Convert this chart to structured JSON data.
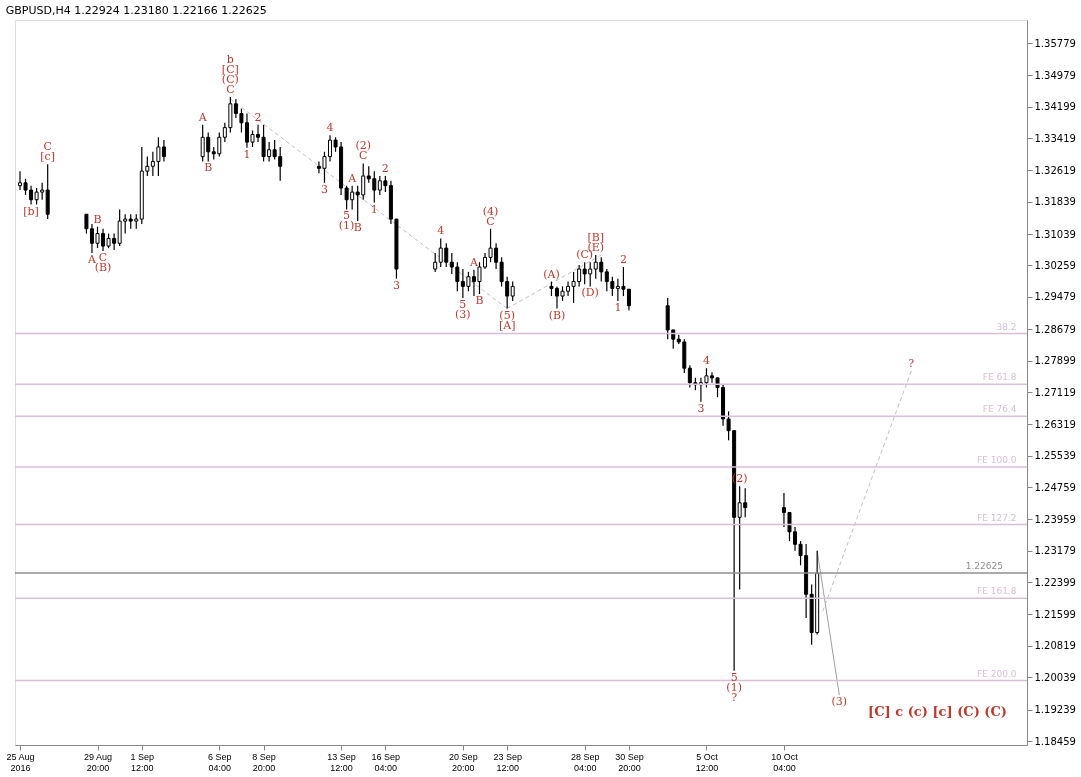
{
  "chart_data": {
    "type": "candlestick",
    "title": "GBPUSD,H4 1.22924 1.23180 1.22166 1.22625",
    "xlim": [
      "2016-08-25T04:00",
      "2016-10-24T12:00"
    ],
    "xticks": [
      {
        "value": "2016-08-25T04:00",
        "label": "25 Aug 2016"
      },
      {
        "value": "2016-08-29T20:00",
        "label": "29 Aug 20:00"
      },
      {
        "value": "2016-09-01T12:00",
        "label": "1 Sep 12:00"
      },
      {
        "value": "2016-09-06T04:00",
        "label": "6 Sep 04:00"
      },
      {
        "value": "2016-09-08T20:00",
        "label": "8 Sep 20:00"
      },
      {
        "value": "2016-09-13T12:00",
        "label": "13 Sep 12:00"
      },
      {
        "value": "2016-09-16T04:00",
        "label": "16 Sep 04:00"
      },
      {
        "value": "2016-09-20T20:00",
        "label": "20 Sep 20:00"
      },
      {
        "value": "2016-09-23T12:00",
        "label": "23 Sep 12:00"
      },
      {
        "value": "2016-09-28T04:00",
        "label": "28 Sep 04:00"
      },
      {
        "value": "2016-09-30T20:00",
        "label": "30 Sep 20:00"
      },
      {
        "value": "2016-10-05T12:00",
        "label": "5 Oct 12:00"
      },
      {
        "value": "2016-10-10T04:00",
        "label": "10 Oct 04:00"
      }
    ],
    "ylim": [
      1.1836,
      1.3635
    ],
    "yticks": [
      1.35779,
      1.34979,
      1.34199,
      1.33419,
      1.32619,
      1.31839,
      1.31039,
      1.30259,
      1.29479,
      1.28679,
      1.27899,
      1.27119,
      1.26319,
      1.25539,
      1.24759,
      1.23959,
      1.23179,
      1.22399,
      1.21599,
      1.20819,
      1.20039,
      1.19239,
      1.18459
    ],
    "grid": false,
    "series": [
      {
        "color": "#000000",
        "x": [
          "2016-08-25T04:00",
          "2016-08-25T12:00",
          "2016-08-25T20:00",
          "2016-08-26T04:00",
          "2016-08-26T12:00",
          "2016-08-26T20:00",
          "2016-08-29T04:00",
          "2016-08-29T12:00",
          "2016-08-29T20:00",
          "2016-08-30T04:00",
          "2016-08-30T12:00",
          "2016-08-30T20:00",
          "2016-08-31T04:00",
          "2016-08-31T12:00",
          "2016-08-31T20:00",
          "2016-09-01T04:00",
          "2016-09-01T12:00",
          "2016-09-01T20:00",
          "2016-09-02T04:00",
          "2016-09-02T12:00",
          "2016-09-02T20:00",
          "2016-09-05T04:00",
          "2016-09-05T12:00",
          "2016-09-05T20:00",
          "2016-09-06T04:00",
          "2016-09-06T12:00",
          "2016-09-06T20:00",
          "2016-09-07T04:00",
          "2016-09-07T12:00",
          "2016-09-07T20:00",
          "2016-09-08T04:00",
          "2016-09-08T12:00",
          "2016-09-08T20:00",
          "2016-09-09T04:00",
          "2016-09-09T12:00",
          "2016-09-09T20:00",
          "2016-09-12T04:00",
          "2016-09-12T12:00",
          "2016-09-12T20:00",
          "2016-09-13T04:00",
          "2016-09-13T12:00",
          "2016-09-13T20:00",
          "2016-09-14T04:00",
          "2016-09-14T12:00",
          "2016-09-14T20:00",
          "2016-09-15T04:00",
          "2016-09-15T12:00",
          "2016-09-15T20:00",
          "2016-09-16T04:00",
          "2016-09-16T12:00",
          "2016-09-16T20:00",
          "2016-09-19T04:00",
          "2016-09-19T12:00",
          "2016-09-19T20:00",
          "2016-09-20T04:00",
          "2016-09-20T12:00",
          "2016-09-20T20:00",
          "2016-09-21T04:00",
          "2016-09-21T12:00",
          "2016-09-21T20:00",
          "2016-09-22T04:00",
          "2016-09-22T12:00",
          "2016-09-22T20:00",
          "2016-09-23T04:00",
          "2016-09-23T12:00",
          "2016-09-23T20:00",
          "2016-09-26T04:00",
          "2016-09-26T12:00",
          "2016-09-26T20:00",
          "2016-09-27T04:00",
          "2016-09-27T12:00",
          "2016-09-27T20:00",
          "2016-09-28T04:00",
          "2016-09-28T12:00",
          "2016-09-28T20:00",
          "2016-09-29T04:00",
          "2016-09-29T12:00",
          "2016-09-29T20:00",
          "2016-09-30T04:00",
          "2016-09-30T12:00",
          "2016-09-30T20:00",
          "2016-10-03T04:00",
          "2016-10-03T12:00",
          "2016-10-03T20:00",
          "2016-10-04T04:00",
          "2016-10-04T12:00",
          "2016-10-04T20:00",
          "2016-10-05T04:00",
          "2016-10-05T12:00",
          "2016-10-05T20:00",
          "2016-10-06T04:00",
          "2016-10-06T12:00",
          "2016-10-06T20:00",
          "2016-10-07T04:00",
          "2016-10-07T12:00",
          "2016-10-07T20:00",
          "2016-10-10T04:00",
          "2016-10-10T12:00",
          "2016-10-10T20:00",
          "2016-10-11T04:00",
          "2016-10-11T12:00",
          "2016-10-11T20:00",
          "2016-10-12T04:00"
        ],
        "ohlc": [
          [
            1.3224,
            1.326,
            1.3213,
            1.3231
          ],
          [
            1.3231,
            1.3241,
            1.3201,
            1.3213
          ],
          [
            1.3213,
            1.3224,
            1.3177,
            1.3189
          ],
          [
            1.3189,
            1.3218,
            1.3177,
            1.3208
          ],
          [
            1.3208,
            1.3231,
            1.3189,
            1.3213
          ],
          [
            1.3213,
            1.3277,
            1.3141,
            1.3153
          ],
          [
            1.3153,
            1.3153,
            1.3105,
            1.3117
          ],
          [
            1.3117,
            1.3129,
            1.3057,
            1.3081
          ],
          [
            1.3081,
            1.3122,
            1.3069,
            1.3105
          ],
          [
            1.3105,
            1.3117,
            1.3062,
            1.3074
          ],
          [
            1.3074,
            1.3105,
            1.3069,
            1.3093
          ],
          [
            1.3093,
            1.3105,
            1.3064,
            1.3081
          ],
          [
            1.3081,
            1.3165,
            1.3074,
            1.3136
          ],
          [
            1.3136,
            1.3153,
            1.3105,
            1.3141
          ],
          [
            1.3141,
            1.3153,
            1.3117,
            1.3136
          ],
          [
            1.3136,
            1.3153,
            1.3117,
            1.3141
          ],
          [
            1.3141,
            1.332,
            1.3129,
            1.326
          ],
          [
            1.326,
            1.3296,
            1.3248,
            1.3272
          ],
          [
            1.3272,
            1.3308,
            1.3248,
            1.3284
          ],
          [
            1.3284,
            1.3344,
            1.3248,
            1.332
          ],
          [
            1.332,
            1.3337,
            1.3284,
            1.3296
          ],
          [
            1.3296,
            1.3375,
            1.3284,
            1.3344
          ],
          [
            1.3344,
            1.3356,
            1.3284,
            1.3308
          ],
          [
            1.3308,
            1.332,
            1.3289,
            1.3303
          ],
          [
            1.3303,
            1.3356,
            1.3296,
            1.3344
          ],
          [
            1.3344,
            1.338,
            1.3332,
            1.3368
          ],
          [
            1.3368,
            1.3444,
            1.3356,
            1.3427
          ],
          [
            1.3427,
            1.3439,
            1.3392,
            1.3403
          ],
          [
            1.3403,
            1.3415,
            1.3356,
            1.338
          ],
          [
            1.338,
            1.3403,
            1.3318,
            1.3332
          ],
          [
            1.3332,
            1.3361,
            1.332,
            1.3351
          ],
          [
            1.3351,
            1.3375,
            1.3332,
            1.3344
          ],
          [
            1.3344,
            1.3375,
            1.3284,
            1.3296
          ],
          [
            1.3296,
            1.3332,
            1.3284,
            1.3313
          ],
          [
            1.3313,
            1.3337,
            1.3289,
            1.3296
          ],
          [
            1.3296,
            1.332,
            1.3236,
            1.3272
          ],
          [
            1.3272,
            1.3284,
            1.3255,
            1.3267
          ],
          [
            1.3267,
            1.3308,
            1.3231,
            1.3296
          ],
          [
            1.3296,
            1.3349,
            1.3284,
            1.3337
          ],
          [
            1.3337,
            1.3344,
            1.3308,
            1.332
          ],
          [
            1.332,
            1.3332,
            1.3201,
            1.3218
          ],
          [
            1.3218,
            1.3224,
            1.3165,
            1.3189
          ],
          [
            1.3189,
            1.3224,
            1.3165,
            1.3208
          ],
          [
            1.3208,
            1.3224,
            1.3136,
            1.3201
          ],
          [
            1.3201,
            1.3279,
            1.3189,
            1.3248
          ],
          [
            1.3248,
            1.3272,
            1.3231,
            1.3241
          ],
          [
            1.3241,
            1.326,
            1.3182,
            1.3213
          ],
          [
            1.3213,
            1.3248,
            1.3201,
            1.3236
          ],
          [
            1.3236,
            1.3248,
            1.3208,
            1.3224
          ],
          [
            1.3224,
            1.3236,
            1.3129,
            1.3141
          ],
          [
            1.3141,
            1.3141,
            1.2993,
            1.3017
          ],
          [
            1.3017,
            1.3057,
            1.301,
            1.3034
          ],
          [
            1.3034,
            1.3093,
            1.3022,
            1.3069
          ],
          [
            1.3069,
            1.3081,
            1.3022,
            1.3034
          ],
          [
            1.3034,
            1.3057,
            1.3005,
            1.3022
          ],
          [
            1.3022,
            1.3034,
            1.2962,
            1.2986
          ],
          [
            1.2986,
            1.3017,
            1.2945,
            1.2974
          ],
          [
            1.2974,
            1.301,
            1.2962,
            1.2998
          ],
          [
            1.2998,
            1.3015,
            1.295,
            1.2986
          ],
          [
            1.2986,
            1.3034,
            1.2955,
            1.3022
          ],
          [
            1.3022,
            1.3057,
            1.3017,
            1.3046
          ],
          [
            1.3046,
            1.3117,
            1.3034,
            1.3069
          ],
          [
            1.3069,
            1.3081,
            1.3017,
            1.3034
          ],
          [
            1.3034,
            1.3046,
            1.2974,
            1.2986
          ],
          [
            1.2986,
            1.2998,
            1.2919,
            1.295
          ],
          [
            1.295,
            1.2986,
            1.2938,
            1.2974
          ],
          [
            1.2974,
            1.2986,
            1.295,
            1.2969
          ],
          [
            1.2969,
            1.2974,
            1.2919,
            1.295
          ],
          [
            1.295,
            1.2974,
            1.2938,
            1.2962
          ],
          [
            1.2962,
            1.2986,
            1.295,
            1.2974
          ],
          [
            1.2974,
            1.301,
            1.2933,
            1.2986
          ],
          [
            1.2986,
            1.3027,
            1.2974,
            1.3017
          ],
          [
            1.3017,
            1.3034,
            1.2979,
            1.3005
          ],
          [
            1.3005,
            1.3034,
            1.2974,
            1.3017
          ],
          [
            1.3017,
            1.3052,
            1.2993,
            1.3034
          ],
          [
            1.3034,
            1.3046,
            1.2986,
            1.301
          ],
          [
            1.301,
            1.3017,
            1.2962,
            1.2986
          ],
          [
            1.2986,
            1.2998,
            1.295,
            1.2969
          ],
          [
            1.2969,
            1.2993,
            1.2938,
            1.2974
          ],
          [
            1.2974,
            1.3022,
            1.295,
            1.2967
          ],
          [
            1.2967,
            1.2967,
            1.2914,
            1.2926
          ],
          [
            1.2926,
            1.2945,
            1.2843,
            1.2866
          ],
          [
            1.2866,
            1.2866,
            1.2819,
            1.2843
          ],
          [
            1.2843,
            1.2854,
            1.2831,
            1.2836
          ],
          [
            1.2836,
            1.2843,
            1.2759,
            1.2771
          ],
          [
            1.2771,
            1.2778,
            1.2723,
            1.2735
          ],
          [
            1.2735,
            1.2747,
            1.2716,
            1.273
          ],
          [
            1.273,
            1.2747,
            1.2688,
            1.2735
          ],
          [
            1.2735,
            1.2771,
            1.2723,
            1.2752
          ],
          [
            1.2752,
            1.2761,
            1.2735,
            1.2747
          ],
          [
            1.2747,
            1.2747,
            1.2699,
            1.2723
          ],
          [
            1.2723,
            1.273,
            1.2628,
            1.2645
          ],
          [
            1.2645,
            1.2664,
            1.2592,
            1.2616
          ],
          [
            1.2616,
            1.2616,
            1.202,
            1.2401
          ],
          [
            1.2401,
            1.2478,
            1.2222,
            1.2437
          ],
          [
            1.2437,
            1.2473,
            1.2401,
            1.2425
          ],
          [
            1.2425,
            1.2461,
            1.2377,
            1.2413
          ],
          [
            1.2413,
            1.2413,
            1.2342,
            1.2365
          ],
          [
            1.2365,
            1.2377,
            1.2318,
            1.2334
          ],
          [
            1.2334,
            1.2342,
            1.2282,
            1.2306
          ],
          [
            1.2306,
            1.2335,
            1.2151,
            1.221
          ],
          [
            1.221,
            1.2234,
            1.2085,
            1.2115
          ],
          [
            1.2115,
            1.2318,
            1.211,
            1.22625
          ]
        ]
      },
      {
        "type": "line",
        "color": "#c0c0c0",
        "line_style": "dashed",
        "x": [
          "2016-09-06T20:00",
          "2016-09-23T12:00"
        ],
        "values": [
          1.3439,
          1.2919
        ]
      },
      {
        "type": "line",
        "color": "#c0c0c0",
        "line_style": "dashed",
        "x": [
          "2016-09-23T12:00",
          "2016-09-29T04:00"
        ],
        "values": [
          1.2919,
          1.3052
        ]
      },
      {
        "type": "line",
        "color": "#a0a0a0",
        "line_style": "solid",
        "x": [
          "2016-10-12T04:00",
          "2016-10-13T12:00"
        ],
        "values": [
          1.2318,
          1.196
        ]
      },
      {
        "type": "line",
        "color": "#c0c0c0",
        "line_style": "dashed",
        "x": [
          "2016-10-12T12:00",
          "2016-10-17T20:00"
        ],
        "values": [
          1.2168,
          1.2764
        ]
      }
    ],
    "ref_lines": [
      {
        "axis": "y",
        "value": 1.2857,
        "color": "#d8bfd8"
      },
      {
        "axis": "y",
        "value": 1.2731,
        "color": "#d8bfd8"
      },
      {
        "axis": "y",
        "value": 1.2652,
        "color": "#d8bfd8"
      },
      {
        "axis": "y",
        "value": 1.2526,
        "color": "#d8bfd8"
      },
      {
        "axis": "y",
        "value": 1.2383,
        "color": "#d8bfd8"
      },
      {
        "axis": "y",
        "value": 1.22,
        "color": "#d8bfd8"
      },
      {
        "axis": "y",
        "value": 1.1996,
        "color": "#d8bfd8"
      },
      {
        "axis": "y",
        "value": 1.22625,
        "label": "1.22625",
        "color": "#909090"
      }
    ],
    "annotations": [
      {
        "text": "b",
        "x": "2016-09-06T20:00",
        "y": 1.3444
      },
      {
        "text": "[C]",
        "x": "2016-09-06T20:00",
        "y": 1.3444
      },
      {
        "text": "(C)",
        "x": "2016-09-06T20:00",
        "y": 1.3444
      },
      {
        "text": "C",
        "x": "2016-09-06T20:00",
        "y": 1.3444
      },
      {
        "text": "C",
        "x": "2016-08-26T20:00",
        "y": 1.3277
      },
      {
        "text": "[c]",
        "x": "2016-08-26T20:00",
        "y": 1.3277
      },
      {
        "text": "[b]",
        "x": "2016-08-25T20:00",
        "y": 1.3177
      },
      {
        "text": "B",
        "x": "2016-08-29T20:00",
        "y": 1.3122
      },
      {
        "text": "A",
        "x": "2016-08-29T12:00",
        "y": 1.3057
      },
      {
        "text": "C",
        "x": "2016-08-30T04:00",
        "y": 1.3062
      },
      {
        "text": "(B)",
        "x": "2016-08-30T04:00",
        "y": 1.3062
      },
      {
        "text": "A",
        "x": "2016-09-05T04:00",
        "y": 1.3375
      },
      {
        "text": "B",
        "x": "2016-09-05T12:00",
        "y": 1.3284
      },
      {
        "text": "1",
        "x": "2016-09-07T20:00",
        "y": 1.3318
      },
      {
        "text": "2",
        "x": "2016-09-08T12:00",
        "y": 1.3375
      },
      {
        "text": "3",
        "x": "2016-09-12T12:00",
        "y": 1.3231
      },
      {
        "text": "4",
        "x": "2016-09-12T20:00",
        "y": 1.3349
      },
      {
        "text": "5",
        "x": "2016-09-13T20:00",
        "y": 1.3165
      },
      {
        "text": "(1)",
        "x": "2016-09-13T20:00",
        "y": 1.3165
      },
      {
        "text": "A",
        "x": "2016-09-14T04:00",
        "y": 1.3224
      },
      {
        "text": "B",
        "x": "2016-09-14T12:00",
        "y": 1.3136
      },
      {
        "text": "(2)",
        "x": "2016-09-14T20:00",
        "y": 1.3279
      },
      {
        "text": "C",
        "x": "2016-09-14T20:00",
        "y": 1.3279
      },
      {
        "text": "1",
        "x": "2016-09-15T12:00",
        "y": 1.3182
      },
      {
        "text": "2",
        "x": "2016-09-16T04:00",
        "y": 1.3248
      },
      {
        "text": "3",
        "x": "2016-09-16T20:00",
        "y": 1.2993
      },
      {
        "text": "4",
        "x": "2016-09-19T12:00",
        "y": 1.3093
      },
      {
        "text": "5",
        "x": "2016-09-20T20:00",
        "y": 1.2945
      },
      {
        "text": "(3)",
        "x": "2016-09-20T20:00",
        "y": 1.2945
      },
      {
        "text": "A",
        "x": "2016-09-21T12:00",
        "y": 1.3015
      },
      {
        "text": "B",
        "x": "2016-09-21T20:00",
        "y": 1.2955
      },
      {
        "text": "(4)",
        "x": "2016-09-22T12:00",
        "y": 1.3117
      },
      {
        "text": "C",
        "x": "2016-09-22T12:00",
        "y": 1.3117
      },
      {
        "text": "(5)",
        "x": "2016-09-23T12:00",
        "y": 1.2919
      },
      {
        "text": "[A]",
        "x": "2016-09-23T12:00",
        "y": 1.2919
      },
      {
        "text": "(A)",
        "x": "2016-09-26T04:00",
        "y": 1.2986
      },
      {
        "text": "(B)",
        "x": "2016-09-26T12:00",
        "y": 1.2919
      },
      {
        "text": "(C)",
        "x": "2016-09-28T04:00",
        "y": 1.3034
      },
      {
        "text": "[B]",
        "x": "2016-09-28T20:00",
        "y": 1.3052
      },
      {
        "text": "(E)",
        "x": "2016-09-28T20:00",
        "y": 1.3052
      },
      {
        "text": "(D)",
        "x": "2016-09-28T12:00",
        "y": 1.2974
      },
      {
        "text": "1",
        "x": "2016-09-30T04:00",
        "y": 1.2938
      },
      {
        "text": "2",
        "x": "2016-09-30T12:00",
        "y": 1.3022
      },
      {
        "text": "3",
        "x": "2016-10-05T04:00",
        "y": 1.2688
      },
      {
        "text": "4",
        "x": "2016-10-05T12:00",
        "y": 1.2771
      },
      {
        "text": "(2)",
        "x": "2016-10-07T12:00",
        "y": 1.2478
      },
      {
        "text": "5",
        "x": "2016-10-07T04:00",
        "y": 1.202
      },
      {
        "text": "(1)",
        "x": "2016-10-07T04:00",
        "y": 1.202
      },
      {
        "text": "?",
        "x": "2016-10-07T04:00",
        "y": 1.202
      },
      {
        "text": "(3)",
        "x": "2016-10-13T12:00",
        "y": 1.196
      },
      {
        "text": "?",
        "x": "2016-10-17T20:00",
        "y": 1.2764
      },
      {
        "text": "38.2",
        "x": "2016-10-24T04:00",
        "y": 1.2857
      },
      {
        "text": "FE 61.8",
        "x": "2016-10-24T04:00",
        "y": 1.2731
      },
      {
        "text": "FE 76.4",
        "x": "2016-10-24T04:00",
        "y": 1.2652
      },
      {
        "text": "FE 100.0",
        "x": "2016-10-24T04:00",
        "y": 1.2526
      },
      {
        "text": "FE 127.2",
        "x": "2016-10-24T04:00",
        "y": 1.2383
      },
      {
        "text": "FE 161.8",
        "x": "2016-10-24T04:00",
        "y": 1.22
      },
      {
        "text": "FE 200.0",
        "x": "2016-10-24T04:00",
        "y": 1.1996
      },
      "[C] c (c) [c] (C) (C)"
    ]
  }
}
